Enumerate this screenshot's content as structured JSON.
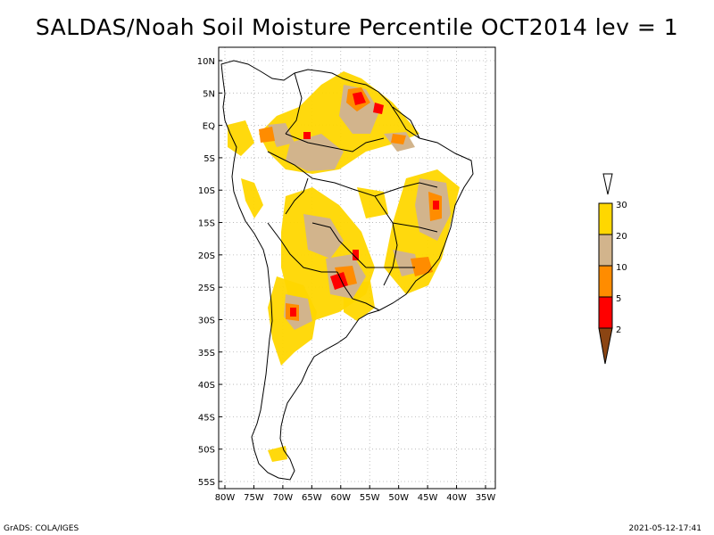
{
  "title": "SALDAS/Noah Soil Moisture Percentile OCT2014 lev = 1",
  "map": {
    "lat_labels": [
      "10N",
      "5N",
      "EQ",
      "5S",
      "10S",
      "15S",
      "20S",
      "25S",
      "30S",
      "35S",
      "40S",
      "45S",
      "50S",
      "55S"
    ],
    "lon_labels": [
      "80W",
      "75W",
      "70W",
      "65W",
      "60W",
      "55W",
      "50W",
      "45W",
      "40W",
      "35W"
    ]
  },
  "legend": {
    "labels": [
      "30",
      "20",
      "10",
      "5",
      "2"
    ],
    "colors": {
      "above30": "#ffffff",
      "p20_30": "#ffd700",
      "p10_20": "#d2b48c",
      "p5_10": "#ff8c00",
      "p2_5": "#ff0000",
      "below2": "#8b4513"
    }
  },
  "footer": {
    "left": "GrADS: COLA/IGES",
    "right": "2021-05-12-17:41"
  }
}
